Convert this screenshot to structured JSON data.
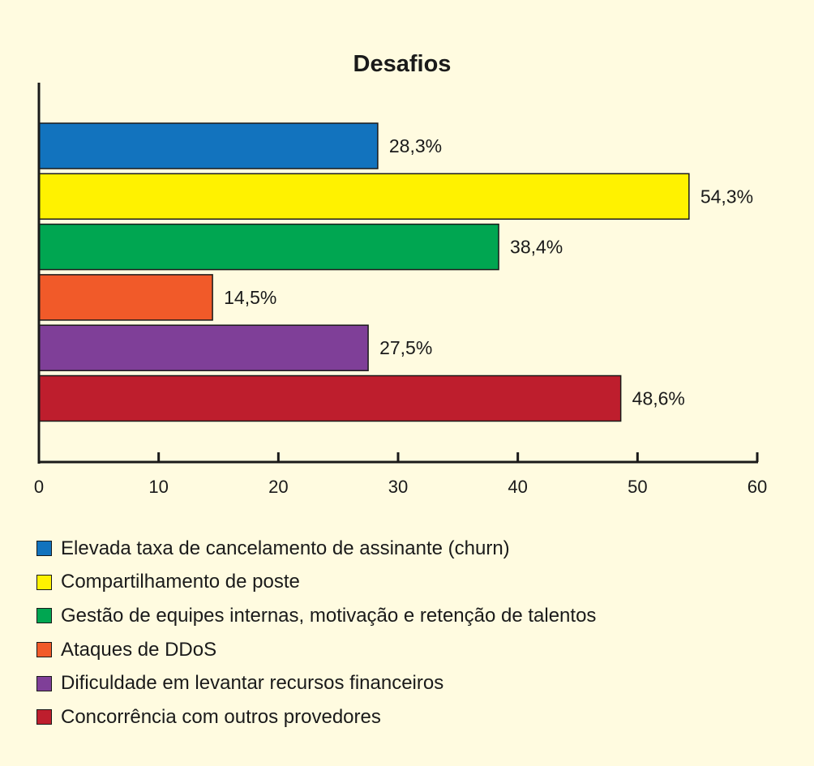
{
  "chart_data": {
    "type": "bar",
    "orientation": "horizontal",
    "title": "Desafios",
    "categories": [
      "Elevada taxa de cancelamento de assinante (churn)",
      "Compartilhamento de poste",
      "Gestão de equipes internas, motivação e retenção de talentos",
      "Ataques de DDoS",
      "Dificuldade em levantar recursos financeiros",
      "Concorrência com outros provedores"
    ],
    "values": [
      28.3,
      54.3,
      38.4,
      14.5,
      27.5,
      48.6
    ],
    "value_labels": [
      "28,3%",
      "54,3%",
      "38,4%",
      "14,5%",
      "27,5%",
      "48,6%"
    ],
    "colors": [
      "#1273BE",
      "#FFF200",
      "#00A651",
      "#F15A29",
      "#7F3F98",
      "#BE1E2D"
    ],
    "xlim": [
      0,
      60
    ],
    "xticks": [
      0,
      10,
      20,
      30,
      40,
      50,
      60
    ],
    "grid": false,
    "legend_position": "bottom"
  }
}
